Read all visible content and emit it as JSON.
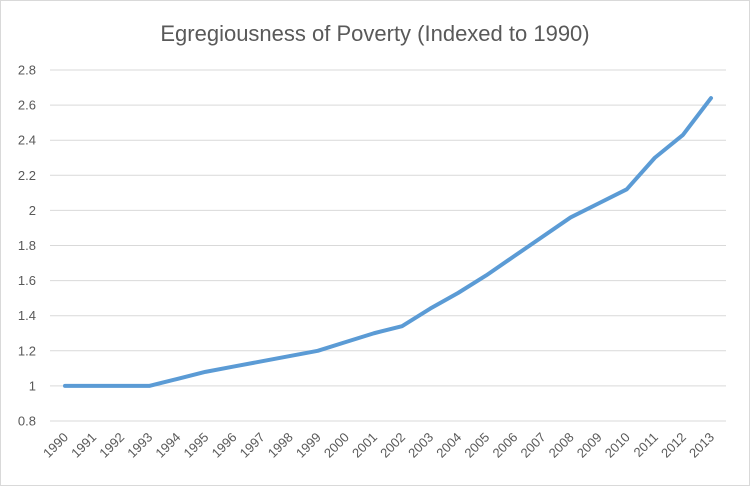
{
  "chart_data": {
    "type": "line",
    "title": "Egregiousness of Poverty (Indexed to 1990)",
    "xlabel": "",
    "ylabel": "",
    "ylim": [
      0.8,
      2.8
    ],
    "yticks": [
      "0.8",
      "1",
      "1.2",
      "1.4",
      "1.6",
      "1.8",
      "2",
      "2.2",
      "2.4",
      "2.6",
      "2.8"
    ],
    "yticks_values": [
      0.8,
      1.0,
      1.2,
      1.4,
      1.6,
      1.8,
      2.0,
      2.2,
      2.4,
      2.6,
      2.8
    ],
    "grid": true,
    "legend": "none",
    "categories": [
      "1990",
      "1991",
      "1992",
      "1993",
      "1994",
      "1995",
      "1996",
      "1997",
      "1998",
      "1999",
      "2000",
      "2001",
      "2002",
      "2003",
      "2004",
      "2005",
      "2006",
      "2007",
      "2008",
      "2009",
      "2010",
      "2011",
      "2012",
      "2013"
    ],
    "series": [
      {
        "name": "Egregiousness of Poverty",
        "color": "#5b9bd5",
        "values": [
          1.0,
          1.0,
          1.0,
          1.0,
          1.04,
          1.08,
          1.11,
          1.14,
          1.17,
          1.2,
          1.25,
          1.3,
          1.34,
          1.44,
          1.53,
          1.63,
          1.74,
          1.85,
          1.96,
          2.04,
          2.12,
          2.3,
          2.43,
          2.64
        ]
      }
    ]
  }
}
